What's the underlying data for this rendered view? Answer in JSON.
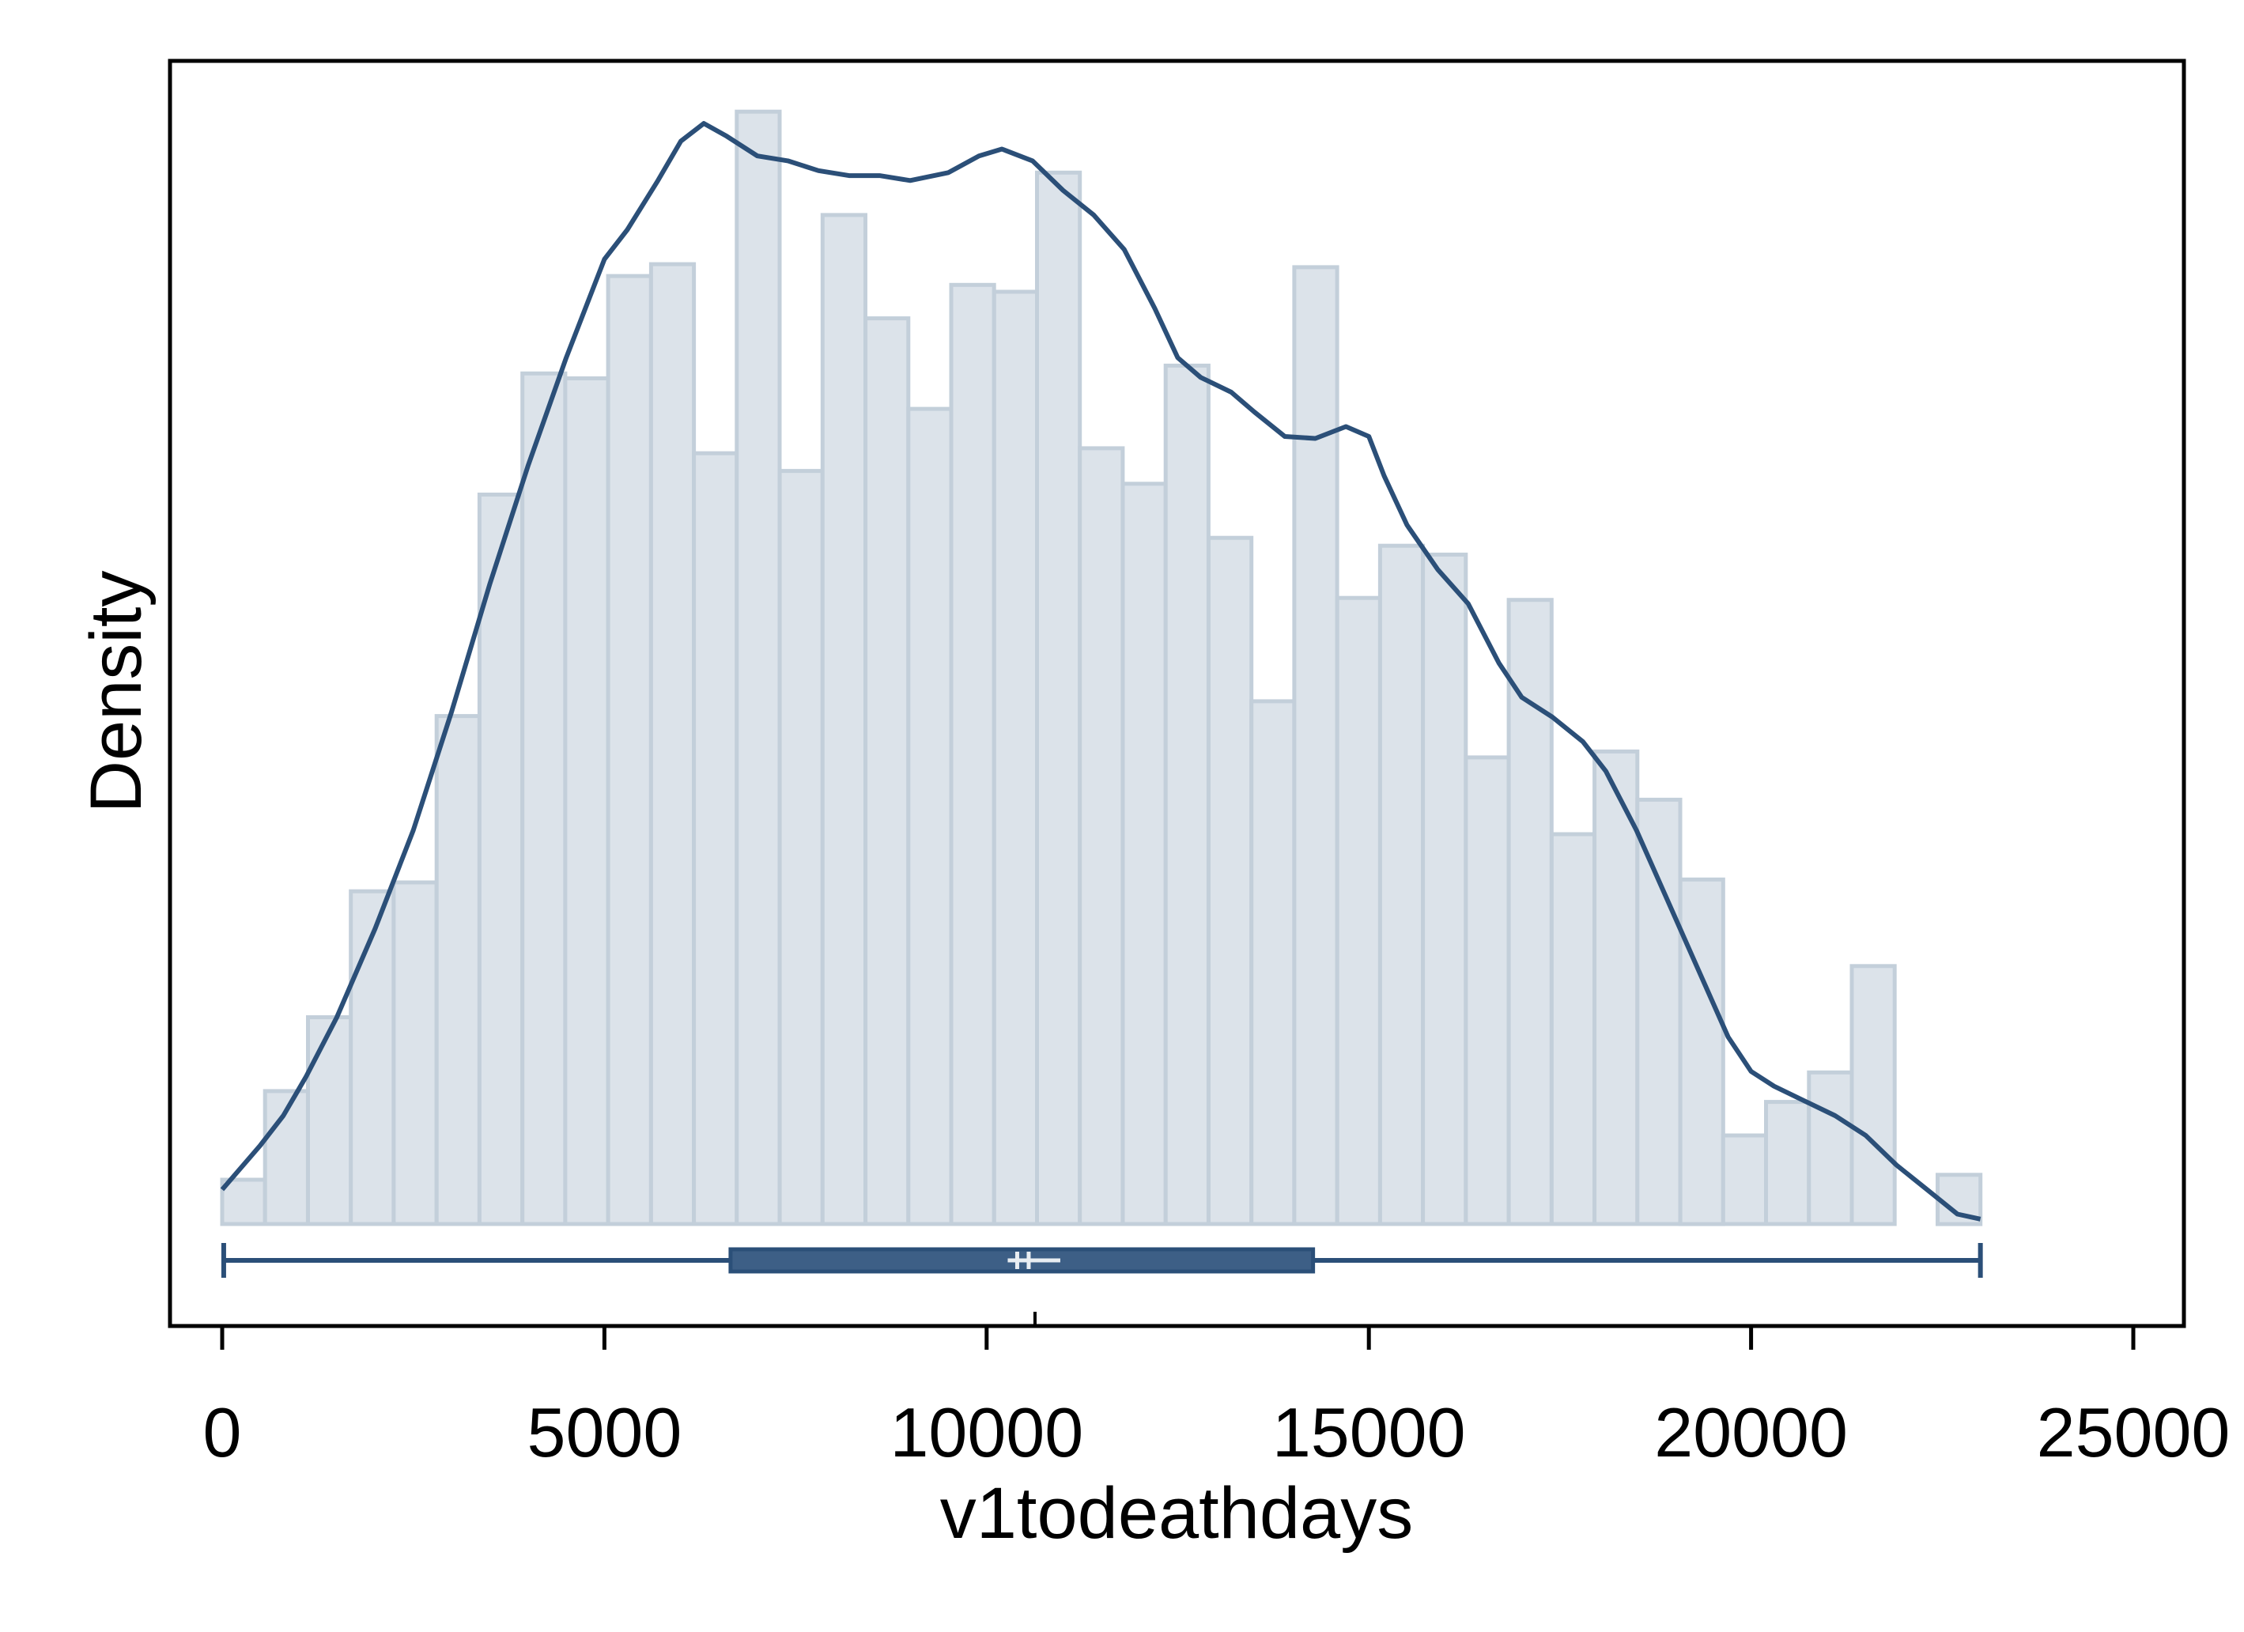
{
  "chart_data": {
    "type": "bar",
    "title": "",
    "xlabel": "v1todeathdays",
    "ylabel": "Density",
    "xlim": [
      -700,
      25700
    ],
    "x_ticks": [
      0,
      5000,
      10000,
      15000,
      20000,
      25000
    ],
    "x_tick_labels": [
      "0",
      "5000",
      "10000",
      "15000",
      "20000",
      "25000"
    ],
    "y_ticks_shown": false,
    "grid": false,
    "legend": "none",
    "bin_width": 561,
    "bins": [
      {
        "x0": 0,
        "x1": 561,
        "height": 0.045
      },
      {
        "x0": 561,
        "x1": 1122,
        "height": 0.135
      },
      {
        "x0": 1122,
        "x1": 1683,
        "height": 0.21
      },
      {
        "x0": 1683,
        "x1": 2244,
        "height": 0.338
      },
      {
        "x0": 2244,
        "x1": 2805,
        "height": 0.347
      },
      {
        "x0": 2805,
        "x1": 3366,
        "height": 0.516
      },
      {
        "x0": 3366,
        "x1": 3927,
        "height": 0.741
      },
      {
        "x0": 3927,
        "x1": 4488,
        "height": 0.864
      },
      {
        "x0": 4488,
        "x1": 5049,
        "height": 0.859
      },
      {
        "x0": 5049,
        "x1": 5610,
        "height": 0.963
      },
      {
        "x0": 5610,
        "x1": 6171,
        "height": 0.975
      },
      {
        "x0": 6171,
        "x1": 6732,
        "height": 0.783
      },
      {
        "x0": 6732,
        "x1": 7293,
        "height": 1.13
      },
      {
        "x0": 7293,
        "x1": 7854,
        "height": 0.765
      },
      {
        "x0": 7854,
        "x1": 8415,
        "height": 1.025
      },
      {
        "x0": 8415,
        "x1": 8976,
        "height": 0.92
      },
      {
        "x0": 8976,
        "x1": 9537,
        "height": 0.828
      },
      {
        "x0": 9537,
        "x1": 10098,
        "height": 0.954
      },
      {
        "x0": 10098,
        "x1": 10659,
        "height": 0.947
      },
      {
        "x0": 10659,
        "x1": 11220,
        "height": 1.068
      },
      {
        "x0": 11220,
        "x1": 11781,
        "height": 0.788
      },
      {
        "x0": 11781,
        "x1": 12342,
        "height": 0.752
      },
      {
        "x0": 12342,
        "x1": 12903,
        "height": 0.872
      },
      {
        "x0": 12903,
        "x1": 13464,
        "height": 0.697
      },
      {
        "x0": 13464,
        "x1": 14025,
        "height": 0.531
      },
      {
        "x0": 14025,
        "x1": 14586,
        "height": 0.972
      },
      {
        "x0": 14586,
        "x1": 15147,
        "height": 0.636
      },
      {
        "x0": 15147,
        "x1": 15708,
        "height": 0.689
      },
      {
        "x0": 15708,
        "x1": 16269,
        "height": 0.68
      },
      {
        "x0": 16269,
        "x1": 16830,
        "height": 0.474
      },
      {
        "x0": 16830,
        "x1": 17391,
        "height": 0.634
      },
      {
        "x0": 17391,
        "x1": 17952,
        "height": 0.396
      },
      {
        "x0": 17952,
        "x1": 18513,
        "height": 0.48
      },
      {
        "x0": 18513,
        "x1": 19074,
        "height": 0.431
      },
      {
        "x0": 19074,
        "x1": 19635,
        "height": 0.35
      },
      {
        "x0": 19635,
        "x1": 20196,
        "height": 0.09
      },
      {
        "x0": 20196,
        "x1": 20757,
        "height": 0.124
      },
      {
        "x0": 20757,
        "x1": 21318,
        "height": 0.154
      },
      {
        "x0": 21318,
        "x1": 21879,
        "height": 0.262
      },
      {
        "x0": 22440,
        "x1": 23001,
        "height": 0.05
      }
    ],
    "kde": {
      "x": [
        0,
        500,
        800,
        1100,
        1500,
        2000,
        2500,
        3000,
        3500,
        4000,
        4500,
        5000,
        5300,
        5700,
        6000,
        6300,
        6600,
        7000,
        7400,
        7800,
        8200,
        8600,
        9000,
        9500,
        9900,
        10200,
        10600,
        11000,
        11400,
        11800,
        12200,
        12500,
        12800,
        13200,
        13500,
        13900,
        14300,
        14700,
        15000,
        15200,
        15500,
        15900,
        16300,
        16700,
        17000,
        17400,
        17800,
        18100,
        18500,
        18900,
        19300,
        19700,
        20000,
        20300,
        20700,
        21100,
        21500,
        21900,
        22300,
        22700,
        23000
      ],
      "y": [
        0.035,
        0.08,
        0.11,
        0.15,
        0.21,
        0.3,
        0.4,
        0.52,
        0.65,
        0.77,
        0.88,
        0.98,
        1.01,
        1.06,
        1.1,
        1.118,
        1.105,
        1.085,
        1.08,
        1.07,
        1.065,
        1.065,
        1.06,
        1.068,
        1.085,
        1.092,
        1.08,
        1.05,
        1.025,
        0.99,
        0.93,
        0.88,
        0.86,
        0.845,
        0.825,
        0.8,
        0.798,
        0.81,
        0.8,
        0.76,
        0.71,
        0.665,
        0.63,
        0.57,
        0.535,
        0.515,
        0.49,
        0.46,
        0.4,
        0.33,
        0.26,
        0.19,
        0.155,
        0.14,
        0.125,
        0.11,
        0.09,
        0.06,
        0.035,
        0.01,
        0.005
      ]
    },
    "boxplot": {
      "min": 20,
      "q1": 6650,
      "median": 10400,
      "mean": 10550,
      "q3": 14270,
      "max": 23000
    },
    "colors": {
      "bar_fill": "#dce3ea",
      "bar_edge": "#c3cfda",
      "kde_line": "#2b4f78",
      "box_fill": "#3d5f86"
    }
  }
}
